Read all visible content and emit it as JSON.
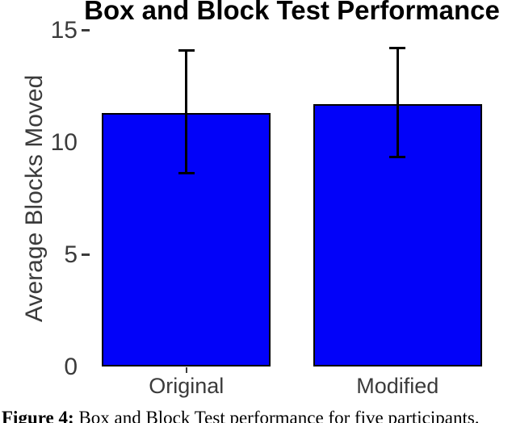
{
  "title": "Box and Block Test Performance",
  "y_axis": {
    "label": "Average Blocks Moved",
    "dash_at": [
      15,
      5
    ]
  },
  "x_axis": {
    "categories": [
      "Original",
      "Modified"
    ]
  },
  "caption": {
    "prefix": "Figure 4:",
    "text": " Box and Block Test performance for five participants."
  },
  "colors": {
    "bar_fill": "#0202f9",
    "bar_edge": "#000000",
    "error_bar": "#000000",
    "axis_text": "#3b3b3b",
    "title_text": "#000000"
  },
  "chart_data": {
    "type": "bar",
    "title": "Box and Block Test Performance",
    "xlabel": "",
    "ylabel": "Average Blocks Moved",
    "categories": [
      "Original",
      "Modified"
    ],
    "values": [
      11.3,
      11.7
    ],
    "error_bars": {
      "upper_whisker": [
        14.1,
        14.2
      ],
      "lower_whisker": [
        8.6,
        9.3
      ]
    },
    "ylim": [
      0,
      15
    ],
    "yticks": [
      0,
      5,
      10,
      15
    ],
    "bar_color": "#0202f9",
    "bar_edge_color": "#000000",
    "grid": false,
    "legend": false
  }
}
